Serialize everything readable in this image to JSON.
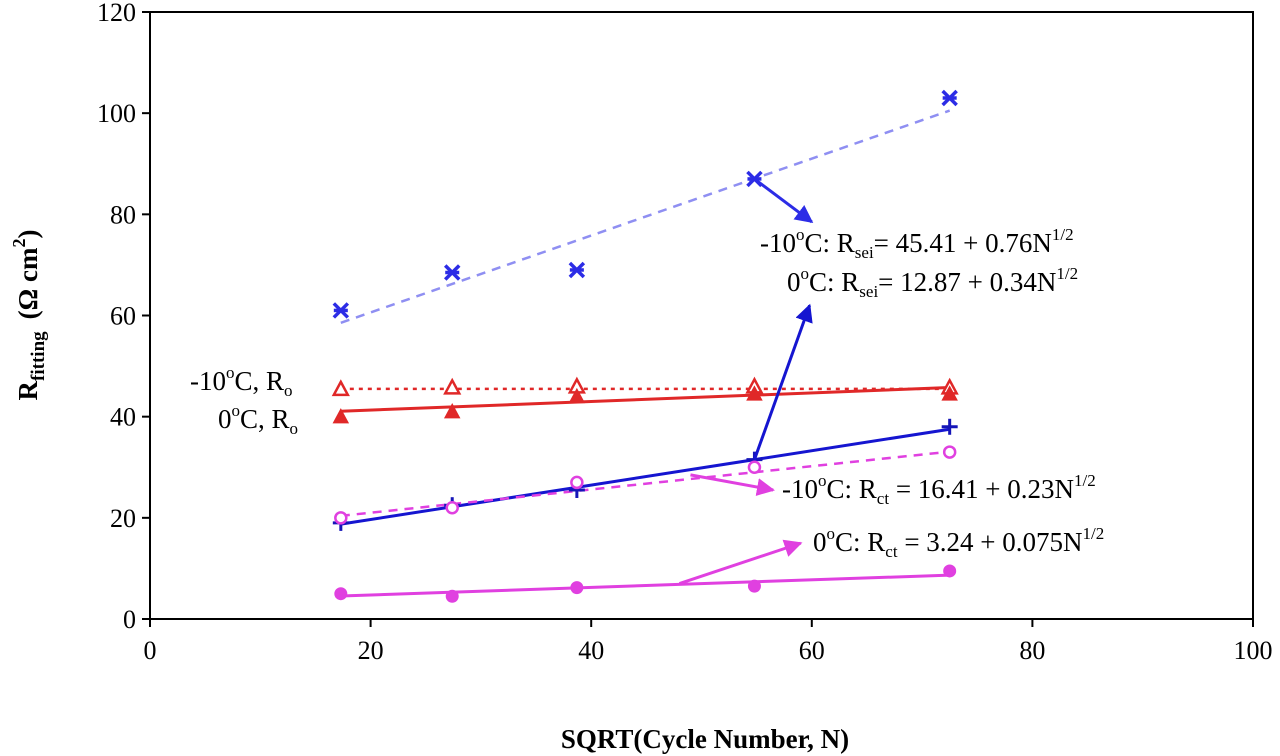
{
  "chart_data": {
    "type": "scatter",
    "title": "",
    "xlabel": "SQRT(Cycle Number, N)",
    "ylabel": {
      "main": "R",
      "sub": "fitting",
      "unit_open": "(Ω cm",
      "unit_sup": "2",
      "unit_close": ")"
    },
    "xlim": [
      0,
      100
    ],
    "ylim": [
      0,
      120
    ],
    "xticks": [
      0,
      20,
      40,
      60,
      80,
      100
    ],
    "yticks": [
      0,
      20,
      40,
      60,
      80,
      100,
      120
    ],
    "x": [
      17.3,
      27.4,
      38.7,
      54.8,
      72.5
    ],
    "series": [
      {
        "id": "rsei-m10",
        "marker": "asterisk",
        "color": "#2c2ce6",
        "values": [
          61,
          68.5,
          69,
          87,
          103
        ],
        "fit": {
          "intercept": 45.41,
          "slope": 0.76,
          "style": "dashed",
          "color": "#8f8ff2"
        }
      },
      {
        "id": "ro-m10",
        "marker": "triangle-open",
        "color": "#e02828",
        "values": [
          45.5,
          45.8,
          46.0,
          46.0,
          45.8
        ],
        "fit": {
          "intercept": 45.5,
          "slope": 0.0,
          "style": "dotted",
          "color": "#e02828"
        }
      },
      {
        "id": "ro-0",
        "marker": "triangle-filled",
        "color": "#e02828",
        "values": [
          40,
          41,
          44,
          44.5,
          44.5
        ],
        "fit": {
          "intercept": 39.6,
          "slope": 0.085,
          "style": "solid",
          "color": "#e02828"
        }
      },
      {
        "id": "rsei-0",
        "marker": "plus",
        "color": "#1515b8",
        "values": [
          19,
          22.5,
          25.5,
          31.5,
          38
        ],
        "fit": {
          "intercept": 12.87,
          "slope": 0.34,
          "style": "solid",
          "color": "#1515d0"
        }
      },
      {
        "id": "rct-m10",
        "marker": "circle-open",
        "color": "#e040e0",
        "values": [
          20,
          22,
          27,
          30,
          33
        ],
        "fit": {
          "intercept": 16.41,
          "slope": 0.23,
          "style": "dashed",
          "color": "#e040e0"
        }
      },
      {
        "id": "rct-0",
        "marker": "circle-filled",
        "color": "#e040e0",
        "values": [
          5,
          4.5,
          6.2,
          6.5,
          9.5
        ],
        "fit": {
          "intercept": 3.24,
          "slope": 0.075,
          "style": "solid",
          "color": "#e040e0"
        }
      }
    ],
    "annotations": [
      {
        "id": "ro-m10",
        "text": "-10",
        "sup": "o",
        "text2": "C, R",
        "sub": "o",
        "text3": ""
      },
      {
        "id": "ro-0",
        "text": "0",
        "sup": "o",
        "text2": "C, R",
        "sub": "o",
        "text3": ""
      },
      {
        "id": "rsei-m10",
        "text": "-10",
        "sup": "o",
        "text2": "C: R",
        "sub": "sei",
        "text3": "= 45.41 + 0.76N",
        "sup2": "1/2"
      },
      {
        "id": "rsei-0",
        "text": "0",
        "sup": "o",
        "text2": "C: R",
        "sub": "sei",
        "text3": "= 12.87 + 0.34N",
        "sup2": "1/2"
      },
      {
        "id": "rct-m10",
        "text": "-10",
        "sup": "o",
        "text2": "C: R",
        "sub": "ct",
        "text3": " = 16.41 + 0.23N",
        "sup2": "1/2"
      },
      {
        "id": "rct-0",
        "text": "0",
        "sup": "o",
        "text2": "C: R",
        "sub": "ct",
        "text3": " = 3.24 + 0.075N",
        "sup2": "1/2"
      }
    ],
    "arrows": [
      {
        "id": "rsei-m10",
        "color": "#2c2ce6",
        "from": [
          54.8,
          87
        ],
        "to": [
          60,
          78.5
        ]
      },
      {
        "id": "rsei-0",
        "color": "#1515d0",
        "from": [
          54.8,
          31.5
        ],
        "to": [
          59.8,
          62
        ]
      },
      {
        "id": "rct-m10",
        "color": "#e040e0",
        "from": [
          49,
          28.5
        ],
        "to": [
          56.5,
          25.5
        ]
      },
      {
        "id": "rct-0",
        "color": "#e040e0",
        "from": [
          48,
          7
        ],
        "to": [
          59,
          15
        ]
      }
    ],
    "grid": false,
    "legend": "none"
  }
}
